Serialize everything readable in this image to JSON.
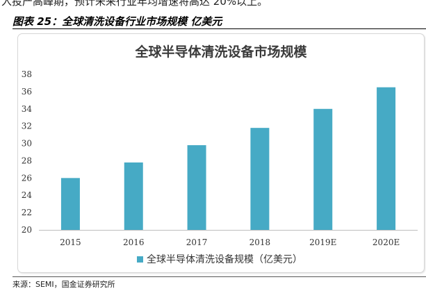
{
  "header": {
    "intro_text": "入投产高峰期，预计未来行业年均增速将高达 20%以上。",
    "figure_title": "图表 25：全球清洗设备行业市场规模 亿美元"
  },
  "footer": {
    "source": "来源：SEMI，国金证券研究所"
  },
  "colors": {
    "bar": "#46aac5"
  },
  "chart_data": {
    "type": "bar",
    "title": "全球半导体清洗设备市场规模",
    "categories": [
      "2015",
      "2016",
      "2017",
      "2018",
      "2019E",
      "2020E"
    ],
    "series": [
      {
        "name": "全球半导体清洗设备规模（亿美元）",
        "values": [
          26.0,
          27.8,
          29.8,
          31.8,
          34.0,
          36.5
        ]
      }
    ],
    "yticks": [
      20,
      22,
      24,
      26,
      28,
      30,
      32,
      34,
      36,
      38
    ],
    "ylim": [
      20,
      38
    ],
    "grid": false,
    "legend_position": "bottom"
  }
}
